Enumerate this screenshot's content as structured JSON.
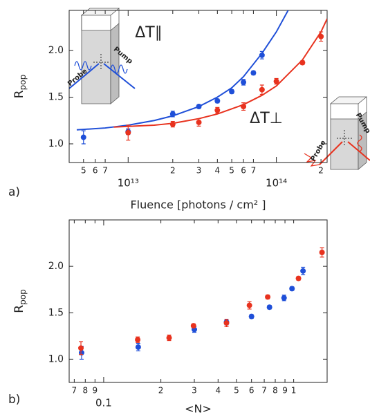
{
  "chart_data": [
    {
      "type": "scatter",
      "xscale": "log",
      "panel_label": "a)",
      "xlabel": "Fluence [photons / cm² ]",
      "ylabel": {
        "main": "R",
        "sub": "pop"
      },
      "xlim": [
        4000000000000.0,
        220000000000000.0
      ],
      "ylim": [
        0.8,
        2.43
      ],
      "xticks": [
        {
          "value": 5000000000000.0,
          "label": "5"
        },
        {
          "value": 6000000000000.0,
          "label": "6"
        },
        {
          "value": 7000000000000.0,
          "label": "7"
        },
        {
          "value": 10000000000000.0,
          "label": "10¹³"
        },
        {
          "value": 20000000000000.0,
          "label": "2"
        },
        {
          "value": 30000000000000.0,
          "label": "3"
        },
        {
          "value": 40000000000000.0,
          "label": "4"
        },
        {
          "value": 50000000000000.0,
          "label": "5"
        },
        {
          "value": 60000000000000.0,
          "label": "6"
        },
        {
          "value": 70000000000000.0,
          "label": "7"
        },
        {
          "value": 100000000000000.0,
          "label": "10¹⁴"
        },
        {
          "value": 200000000000000.0,
          "label": "2"
        }
      ],
      "yticks": [
        {
          "value": 1,
          "label": "1.0"
        },
        1.5,
        {
          "value": 2,
          "label": "2.0"
        }
      ],
      "series": [
        {
          "color": "#1f4fd8",
          "x": [
            5000000000000.0,
            10000000000000.0,
            20000000000000.0,
            30000000000000.0,
            40000000000000.0,
            50000000000000.0,
            60000000000000.0,
            70000000000000.0,
            80000000000000.0
          ],
          "values": [
            1.07,
            1.13,
            1.32,
            1.4,
            1.46,
            1.56,
            1.66,
            1.76,
            1.95
          ],
          "errors": [
            0.07,
            0.03,
            0.03,
            0.02,
            0.02,
            0.02,
            0.03,
            0.02,
            0.04
          ]
        },
        {
          "color": "#e8321e",
          "x": [
            10000000000000.0,
            20000000000000.0,
            30000000000000.0,
            40000000000000.0,
            60000000000000.0,
            80000000000000.0,
            100000000000000.0,
            150000000000000.0,
            200000000000000.0
          ],
          "values": [
            1.12,
            1.21,
            1.23,
            1.36,
            1.4,
            1.58,
            1.67,
            1.87,
            2.15
          ],
          "errors": [
            0.08,
            0.03,
            0.04,
            0.03,
            0.04,
            0.05,
            0.03,
            0.02,
            0.05
          ]
        }
      ],
      "fits": [
        {
          "color": "#1f4fd8",
          "x": [
            4500000000000.0,
            7000000000000.0,
            10000000000000.0,
            15000000000000.0,
            20000000000000.0,
            30000000000000.0,
            40000000000000.0,
            50000000000000.0,
            60000000000000.0,
            80000000000000.0,
            100000000000000.0,
            120000000000000.0
          ],
          "values": [
            1.15,
            1.17,
            1.2,
            1.25,
            1.3,
            1.4,
            1.5,
            1.6,
            1.72,
            1.97,
            2.2,
            2.43
          ]
        },
        {
          "color": "#e8321e",
          "x": [
            8000000000000.0,
            15000000000000.0,
            20000000000000.0,
            30000000000000.0,
            40000000000000.0,
            60000000000000.0,
            80000000000000.0,
            100000000000000.0,
            150000000000000.0,
            200000000000000.0,
            220000000000000.0
          ],
          "values": [
            1.18,
            1.2,
            1.22,
            1.27,
            1.32,
            1.42,
            1.52,
            1.62,
            1.9,
            2.2,
            2.34
          ]
        }
      ],
      "annotations": [
        {
          "text": "ΔT∥",
          "color": "#1f4fd8"
        },
        {
          "text": "ΔT⊥",
          "color": "#e8321e"
        },
        {
          "text": "Probe",
          "color": "#1f4fd8"
        },
        {
          "text": "Pump",
          "color": "#1f4fd8"
        },
        {
          "text": "Probe",
          "color": "#e8321e"
        },
        {
          "text": "Pump",
          "color": "#e8321e"
        }
      ]
    },
    {
      "type": "scatter",
      "xscale": "log",
      "panel_label": "b)",
      "xlabel": "<N>",
      "ylabel": {
        "main": "R",
        "sub": "pop"
      },
      "xlim": [
        0.0658,
        1.5
      ],
      "ylim": [
        0.75,
        2.5
      ],
      "xticks": [
        {
          "value": 0.07,
          "label": "7"
        },
        {
          "value": 0.08,
          "label": "8"
        },
        {
          "value": 0.09,
          "label": "9"
        },
        0.1,
        {
          "value": 0.2,
          "label": "2"
        },
        {
          "value": 0.3,
          "label": "3"
        },
        {
          "value": 0.4,
          "label": "4"
        },
        {
          "value": 0.5,
          "label": "5"
        },
        {
          "value": 0.6,
          "label": "6"
        },
        {
          "value": 0.7,
          "label": "7"
        },
        {
          "value": 0.8,
          "label": "8"
        },
        {
          "value": 0.9,
          "label": "9"
        },
        1
      ],
      "yticks": [
        {
          "value": 1,
          "label": "1.0"
        },
        1.5,
        {
          "value": 2,
          "label": "2.0"
        }
      ],
      "series": [
        {
          "color": "#1f4fd8",
          "x": [
            0.0765,
            0.152,
            0.3,
            0.443,
            0.6,
            0.746,
            0.89,
            0.98,
            1.12
          ],
          "values": [
            1.07,
            1.13,
            1.32,
            1.4,
            1.46,
            1.56,
            1.66,
            1.76,
            1.95
          ],
          "errors": [
            0.07,
            0.04,
            0.03,
            0.03,
            0.02,
            0.02,
            0.03,
            0.02,
            0.04
          ]
        },
        {
          "color": "#e8321e",
          "x": [
            0.0759,
            0.151,
            0.221,
            0.297,
            0.443,
            0.585,
            0.73,
            1.06,
            1.41
          ],
          "values": [
            1.12,
            1.21,
            1.23,
            1.36,
            1.39,
            1.58,
            1.67,
            1.87,
            2.15
          ],
          "errors": [
            0.07,
            0.03,
            0.03,
            0.02,
            0.04,
            0.04,
            0.02,
            0.02,
            0.05
          ]
        }
      ]
    }
  ]
}
